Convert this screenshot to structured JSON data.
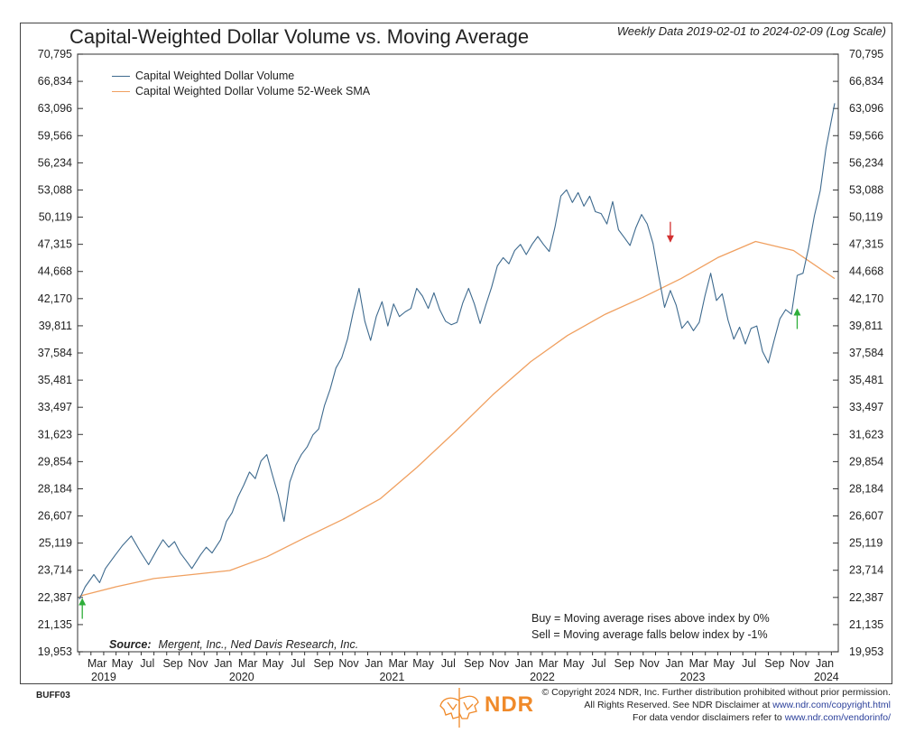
{
  "header": {
    "title": "Capital-Weighted Dollar Volume vs. Moving Average",
    "subtitle": "Weekly Data 2019-02-01 to 2024-02-09 (Log Scale)"
  },
  "annotations": {
    "buy_rule": "Buy = Moving average rises above index by 0%",
    "sell_rule": "Sell = Moving average falls below index by -1%",
    "source_label": "Source:",
    "source_text": "Mergent, Inc., Ned Davis Research, Inc.",
    "chart_code": "BUFF03"
  },
  "footer": {
    "copyright_line1": "© Copyright 2024 NDR, Inc. Further distribution prohibited without prior permission.",
    "copyright_line2_prefix": "All Rights Reserved. See NDR Disclaimer at ",
    "copyright_line2_link": "www.ndr.com/copyright.html",
    "copyright_line3_prefix": "For data vendor disclaimers refer to ",
    "copyright_line3_link": "www.ndr.com/vendorinfo/",
    "logo_text": "NDR"
  },
  "colors": {
    "series_blue": "#3e6a8e",
    "series_orange": "#f0a060",
    "buy_arrow": "#2fae3a",
    "sell_arrow": "#d23030",
    "brand_orange": "#f08a2a"
  },
  "chart_data": {
    "type": "line",
    "title": "Capital-Weighted Dollar Volume vs. Moving Average",
    "subtitle": "Weekly Data 2019-02-01 to 2024-02-09 (Log Scale)",
    "xlabel": "",
    "ylabel": "",
    "yscale": "log",
    "ylim": [
      19953,
      70795
    ],
    "xlim": [
      "2019-02-01",
      "2024-02-09"
    ],
    "grid": false,
    "legend_position": "top-left",
    "y_ticks": [
      "70,795",
      "66,834",
      "63,096",
      "59,566",
      "56,234",
      "53,088",
      "50,119",
      "47,315",
      "44,668",
      "42,170",
      "39,811",
      "37,584",
      "35,481",
      "33,497",
      "31,623",
      "29,854",
      "28,184",
      "26,607",
      "25,119",
      "23,714",
      "22,387",
      "21,135",
      "19,953"
    ],
    "y_tick_values": [
      70795,
      66834,
      63096,
      59566,
      56234,
      53088,
      50119,
      47315,
      44668,
      42170,
      39811,
      37584,
      35481,
      33497,
      31623,
      29854,
      28184,
      26607,
      25119,
      23714,
      22387,
      21135,
      19953
    ],
    "x_month_ticks": [
      {
        "label": "Mar",
        "date": "2019-03-01"
      },
      {
        "label": "May",
        "date": "2019-05-01"
      },
      {
        "label": "Jul",
        "date": "2019-07-01"
      },
      {
        "label": "Sep",
        "date": "2019-09-01"
      },
      {
        "label": "Nov",
        "date": "2019-11-01"
      },
      {
        "label": "Jan",
        "date": "2020-01-01"
      },
      {
        "label": "Mar",
        "date": "2020-03-01"
      },
      {
        "label": "May",
        "date": "2020-05-01"
      },
      {
        "label": "Jul",
        "date": "2020-07-01"
      },
      {
        "label": "Sep",
        "date": "2020-09-01"
      },
      {
        "label": "Nov",
        "date": "2020-11-01"
      },
      {
        "label": "Jan",
        "date": "2021-01-01"
      },
      {
        "label": "Mar",
        "date": "2021-03-01"
      },
      {
        "label": "May",
        "date": "2021-05-01"
      },
      {
        "label": "Jul",
        "date": "2021-07-01"
      },
      {
        "label": "Sep",
        "date": "2021-09-01"
      },
      {
        "label": "Nov",
        "date": "2021-11-01"
      },
      {
        "label": "Jan",
        "date": "2022-01-01"
      },
      {
        "label": "Mar",
        "date": "2022-03-01"
      },
      {
        "label": "May",
        "date": "2022-05-01"
      },
      {
        "label": "Jul",
        "date": "2022-07-01"
      },
      {
        "label": "Sep",
        "date": "2022-09-01"
      },
      {
        "label": "Nov",
        "date": "2022-11-01"
      },
      {
        "label": "Jan",
        "date": "2023-01-01"
      },
      {
        "label": "Mar",
        "date": "2023-03-01"
      },
      {
        "label": "May",
        "date": "2023-05-01"
      },
      {
        "label": "Jul",
        "date": "2023-07-01"
      },
      {
        "label": "Sep",
        "date": "2023-09-01"
      },
      {
        "label": "Nov",
        "date": "2023-11-01"
      },
      {
        "label": "Jan",
        "date": "2024-01-01"
      }
    ],
    "x_year_labels": [
      {
        "label": "2019",
        "date": "2019-04-01"
      },
      {
        "label": "2020",
        "date": "2020-03-01"
      },
      {
        "label": "2021",
        "date": "2021-03-01"
      },
      {
        "label": "2022",
        "date": "2022-03-01"
      },
      {
        "label": "2023",
        "date": "2023-03-01"
      },
      {
        "label": "2024",
        "date": "2024-01-20"
      }
    ],
    "series": [
      {
        "name": "Capital Weighted Dollar Volume",
        "color": "#3e6a8e",
        "points": [
          [
            "2019-02-01",
            22300
          ],
          [
            "2019-02-15",
            22900
          ],
          [
            "2019-03-08",
            23500
          ],
          [
            "2019-03-22",
            23100
          ],
          [
            "2019-04-05",
            23800
          ],
          [
            "2019-04-26",
            24400
          ],
          [
            "2019-05-17",
            25000
          ],
          [
            "2019-06-07",
            25500
          ],
          [
            "2019-06-28",
            24700
          ],
          [
            "2019-07-19",
            24000
          ],
          [
            "2019-08-09",
            24800
          ],
          [
            "2019-08-23",
            25300
          ],
          [
            "2019-09-06",
            24900
          ],
          [
            "2019-09-20",
            25200
          ],
          [
            "2019-10-04",
            24600
          ],
          [
            "2019-10-18",
            24200
          ],
          [
            "2019-11-01",
            23800
          ],
          [
            "2019-11-22",
            24500
          ],
          [
            "2019-12-06",
            24900
          ],
          [
            "2019-12-20",
            24600
          ],
          [
            "2020-01-10",
            25300
          ],
          [
            "2020-01-24",
            26300
          ],
          [
            "2020-02-07",
            26800
          ],
          [
            "2020-02-21",
            27700
          ],
          [
            "2020-03-06",
            28400
          ],
          [
            "2020-03-20",
            29200
          ],
          [
            "2020-04-03",
            28800
          ],
          [
            "2020-04-17",
            29900
          ],
          [
            "2020-05-01",
            30300
          ],
          [
            "2020-05-15",
            29000
          ],
          [
            "2020-05-29",
            27800
          ],
          [
            "2020-06-12",
            26300
          ],
          [
            "2020-06-26",
            28600
          ],
          [
            "2020-07-10",
            29600
          ],
          [
            "2020-07-24",
            30300
          ],
          [
            "2020-08-07",
            30800
          ],
          [
            "2020-08-21",
            31600
          ],
          [
            "2020-09-04",
            32000
          ],
          [
            "2020-09-18",
            33600
          ],
          [
            "2020-10-02",
            34800
          ],
          [
            "2020-10-16",
            36400
          ],
          [
            "2020-10-30",
            37200
          ],
          [
            "2020-11-13",
            38700
          ],
          [
            "2020-11-27",
            41000
          ],
          [
            "2020-12-11",
            43100
          ],
          [
            "2020-12-25",
            40200
          ],
          [
            "2021-01-08",
            38600
          ],
          [
            "2021-01-22",
            40600
          ],
          [
            "2021-02-05",
            41900
          ],
          [
            "2021-02-19",
            39800
          ],
          [
            "2021-03-05",
            41700
          ],
          [
            "2021-03-19",
            40600
          ],
          [
            "2021-04-02",
            41000
          ],
          [
            "2021-04-16",
            41300
          ],
          [
            "2021-04-30",
            43100
          ],
          [
            "2021-05-14",
            42400
          ],
          [
            "2021-05-28",
            41300
          ],
          [
            "2021-06-11",
            42700
          ],
          [
            "2021-06-25",
            41200
          ],
          [
            "2021-07-09",
            40200
          ],
          [
            "2021-07-23",
            39900
          ],
          [
            "2021-08-06",
            40100
          ],
          [
            "2021-08-20",
            41800
          ],
          [
            "2021-09-03",
            43100
          ],
          [
            "2021-09-17",
            41700
          ],
          [
            "2021-10-01",
            40000
          ],
          [
            "2021-10-15",
            41600
          ],
          [
            "2021-10-29",
            43200
          ],
          [
            "2021-11-12",
            45200
          ],
          [
            "2021-11-26",
            46000
          ],
          [
            "2021-12-10",
            45400
          ],
          [
            "2021-12-24",
            46700
          ],
          [
            "2022-01-07",
            47300
          ],
          [
            "2022-01-21",
            46300
          ],
          [
            "2022-02-04",
            47300
          ],
          [
            "2022-02-18",
            48100
          ],
          [
            "2022-03-04",
            47300
          ],
          [
            "2022-03-18",
            46600
          ],
          [
            "2022-04-01",
            49100
          ],
          [
            "2022-04-15",
            52400
          ],
          [
            "2022-04-29",
            53100
          ],
          [
            "2022-05-13",
            51700
          ],
          [
            "2022-05-27",
            52800
          ],
          [
            "2022-06-10",
            51300
          ],
          [
            "2022-06-24",
            52400
          ],
          [
            "2022-07-08",
            50700
          ],
          [
            "2022-07-22",
            50500
          ],
          [
            "2022-08-05",
            49400
          ],
          [
            "2022-08-19",
            51800
          ],
          [
            "2022-09-02",
            48800
          ],
          [
            "2022-09-16",
            48000
          ],
          [
            "2022-09-30",
            47200
          ],
          [
            "2022-10-14",
            49000
          ],
          [
            "2022-10-28",
            50400
          ],
          [
            "2022-11-11",
            49400
          ],
          [
            "2022-11-25",
            47400
          ],
          [
            "2022-12-09",
            44200
          ],
          [
            "2022-12-23",
            41400
          ],
          [
            "2023-01-06",
            42900
          ],
          [
            "2023-01-20",
            41600
          ],
          [
            "2023-02-03",
            39600
          ],
          [
            "2023-02-17",
            40200
          ],
          [
            "2023-03-03",
            39400
          ],
          [
            "2023-03-17",
            40100
          ],
          [
            "2023-03-31",
            42400
          ],
          [
            "2023-04-14",
            44500
          ],
          [
            "2023-04-28",
            42000
          ],
          [
            "2023-05-12",
            42600
          ],
          [
            "2023-05-26",
            40300
          ],
          [
            "2023-06-09",
            38700
          ],
          [
            "2023-06-23",
            39700
          ],
          [
            "2023-07-07",
            38300
          ],
          [
            "2023-07-21",
            39600
          ],
          [
            "2023-08-04",
            39800
          ],
          [
            "2023-08-18",
            37700
          ],
          [
            "2023-09-01",
            36800
          ],
          [
            "2023-09-15",
            38600
          ],
          [
            "2023-09-29",
            40400
          ],
          [
            "2023-10-13",
            41200
          ],
          [
            "2023-10-27",
            40800
          ],
          [
            "2023-11-10",
            44300
          ],
          [
            "2023-11-24",
            44500
          ],
          [
            "2023-12-08",
            47000
          ],
          [
            "2023-12-22",
            50300
          ],
          [
            "2024-01-05",
            53000
          ],
          [
            "2024-01-19",
            58000
          ],
          [
            "2024-02-09",
            63800
          ]
        ]
      },
      {
        "name": "Capital Weighted Dollar Volume 52-Week SMA",
        "color": "#f0a060",
        "points": [
          [
            "2019-02-01",
            22450
          ],
          [
            "2019-05-01",
            22900
          ],
          [
            "2019-08-01",
            23300
          ],
          [
            "2019-11-01",
            23500
          ],
          [
            "2020-02-01",
            23700
          ],
          [
            "2020-05-01",
            24400
          ],
          [
            "2020-08-01",
            25400
          ],
          [
            "2020-11-01",
            26400
          ],
          [
            "2021-02-01",
            27600
          ],
          [
            "2021-05-01",
            29500
          ],
          [
            "2021-08-01",
            31800
          ],
          [
            "2021-11-01",
            34400
          ],
          [
            "2022-02-01",
            36900
          ],
          [
            "2022-05-01",
            39000
          ],
          [
            "2022-08-01",
            40800
          ],
          [
            "2022-11-01",
            42300
          ],
          [
            "2023-02-01",
            44000
          ],
          [
            "2023-05-01",
            46000
          ],
          [
            "2023-08-01",
            47600
          ],
          [
            "2023-11-01",
            46700
          ],
          [
            "2024-02-09",
            44000
          ]
        ]
      }
    ],
    "signals": [
      {
        "type": "buy",
        "date": "2019-02-08",
        "value": 22400
      },
      {
        "type": "sell",
        "date": "2023-01-06",
        "value": 47400
      },
      {
        "type": "buy",
        "date": "2023-11-10",
        "value": 41400
      }
    ]
  }
}
